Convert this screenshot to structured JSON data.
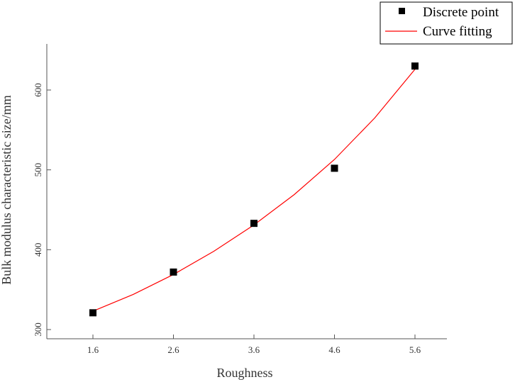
{
  "chart_data": {
    "type": "scatter",
    "xlabel": "Roughness",
    "ylabel": "Bulk modulus characteristic size/mm",
    "xlim": [
      1.6,
      5.6
    ],
    "ylim": [
      300,
      600
    ],
    "x_ticks": [
      "1.6",
      "2.6",
      "3.6",
      "4.6",
      "5.6"
    ],
    "y_ticks": [
      "300",
      "400",
      "500",
      "600"
    ],
    "x_tick_values": [
      1.6,
      2.6,
      3.6,
      4.6,
      5.6
    ],
    "y_tick_values": [
      300,
      400,
      500,
      600
    ],
    "grid": false,
    "legend_position": "top-right",
    "series": [
      {
        "name": "Discrete point",
        "kind": "scatter",
        "marker": "square",
        "color": "#000000",
        "x": [
          1.6,
          2.6,
          3.6,
          4.6,
          5.6
        ],
        "y": [
          321,
          372,
          433,
          502,
          630
        ]
      },
      {
        "name": "Curve fitting",
        "kind": "line",
        "color": "#ff0000",
        "x": [
          1.6,
          2.1,
          2.6,
          3.1,
          3.6,
          4.1,
          4.6,
          5.1,
          5.6
        ],
        "y": [
          323,
          344,
          369,
          398,
          431,
          469,
          513,
          565,
          626
        ]
      }
    ]
  }
}
